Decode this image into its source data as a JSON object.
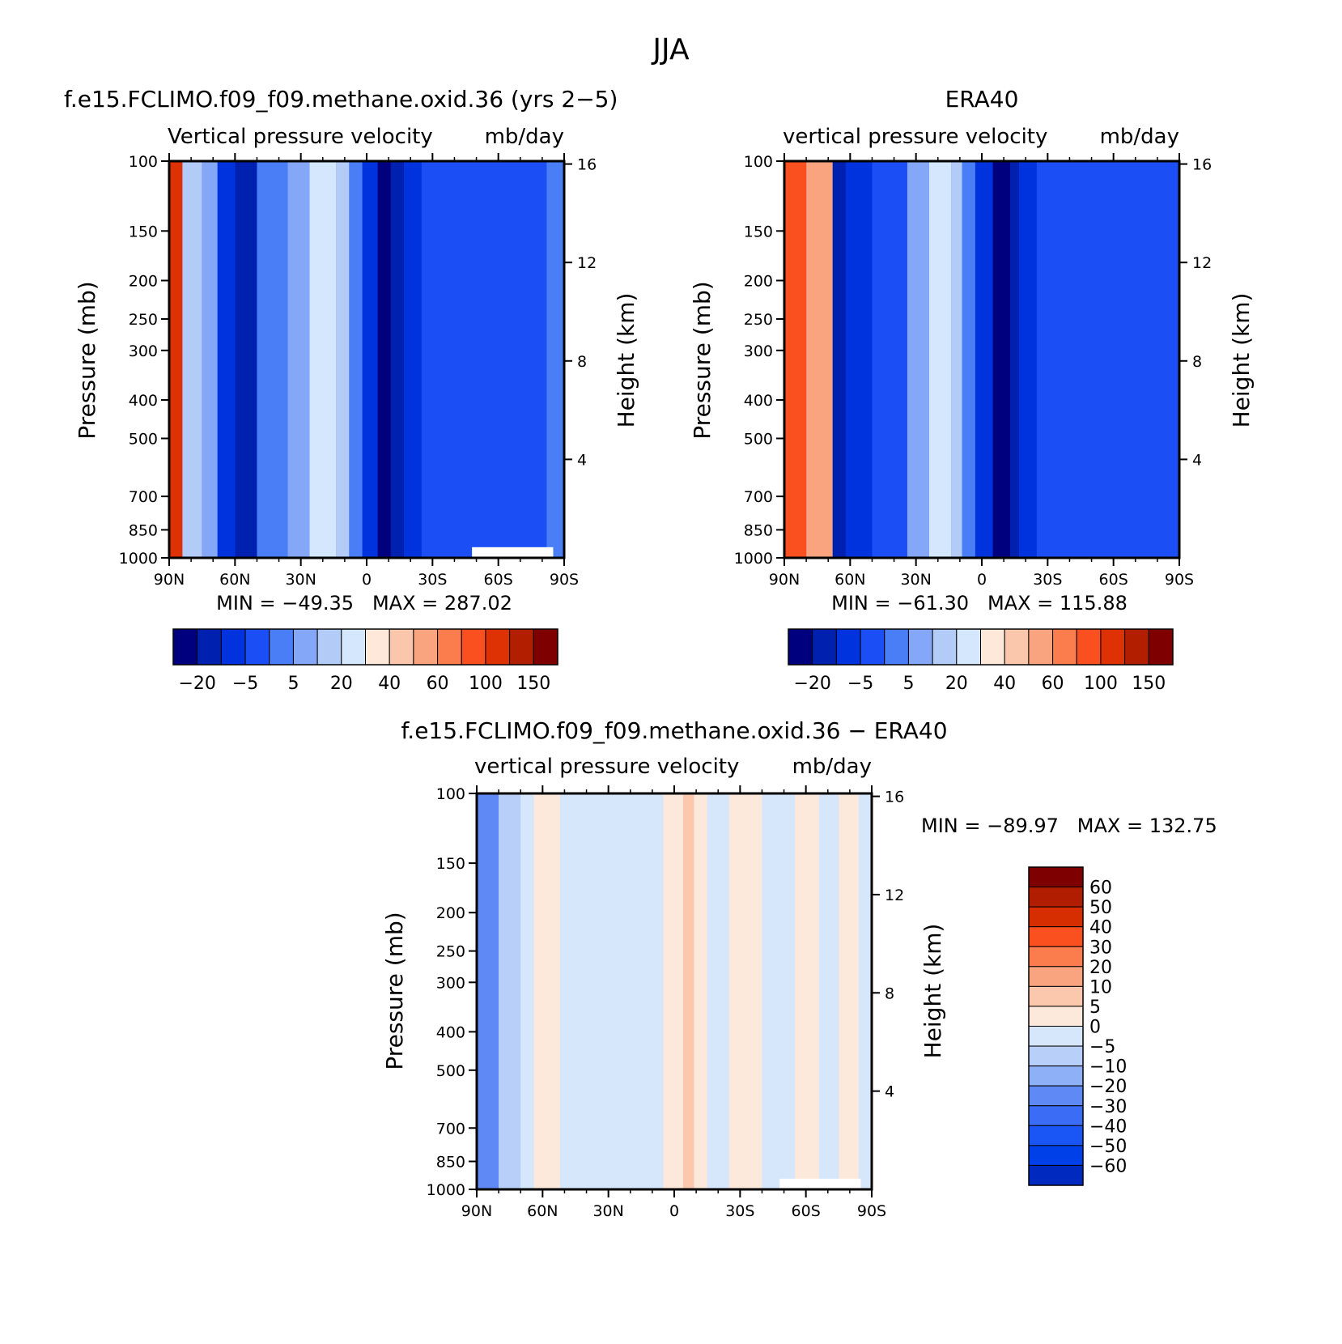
{
  "figure": {
    "title": "JJA"
  },
  "colors": {
    "abs_scale": [
      "#00007f",
      "#0020b0",
      "#0033dd",
      "#1c4ef5",
      "#4a7ef7",
      "#84a8f7",
      "#b2cbf7",
      "#d5e7fc",
      "#fde8da",
      "#fac7ad",
      "#f9a47f",
      "#fb7c4d",
      "#fa4f1f",
      "#de3204",
      "#b21e00",
      "#7f0000"
    ],
    "diff_scale": [
      "#00007f",
      "#00118c",
      "#0029bf",
      "#0040e8",
      "#1a55f5",
      "#3a6cf5",
      "#5f8af5",
      "#8eb0f7",
      "#b7cff9",
      "#d6e7fc",
      "#fde9db",
      "#fbc8ae",
      "#f9a47e",
      "#fb7c4d",
      "#fa4f1f",
      "#d62e00",
      "#b01d00",
      "#7f0000"
    ]
  },
  "chart_data": [
    {
      "type": "heatmap",
      "title": "f.e15.FCLIMO.f09_f09.methane.oxid.36 (yrs 2−5)",
      "subtitle_left": "Vertical pressure velocity",
      "subtitle_right": "mb/day",
      "xlabel": "",
      "ylabel": "Pressure (mb)",
      "y2label": "Height (km)",
      "x_ticks": [
        "90N",
        "60N",
        "30N",
        "0",
        "30S",
        "60S",
        "90S"
      ],
      "y_ticks": [
        "100",
        "150",
        "200",
        "250",
        "300",
        "400",
        "500",
        "700",
        "850",
        "1000"
      ],
      "y2_ticks": [
        "16",
        "12",
        "8",
        "4"
      ],
      "y_scale": "log",
      "ylim": [
        1000,
        100
      ],
      "stats": "MIN = −49.35   MAX = 287.02",
      "colorbar_labels": [
        "−20",
        "−5",
        "5",
        "20",
        "40",
        "60",
        "100",
        "150"
      ],
      "colorbar_orientation": "horizontal",
      "bands": [
        {
          "lat": [
            -90,
            -82
          ],
          "level": 4
        },
        {
          "lat": [
            -82,
            -70
          ],
          "level": 3
        },
        {
          "lat": [
            -70,
            -55
          ],
          "level": 3
        },
        {
          "lat": [
            -55,
            -45
          ],
          "level": 3
        },
        {
          "lat": [
            -45,
            -35
          ],
          "level": 3
        },
        {
          "lat": [
            -35,
            -25
          ],
          "level": 3
        },
        {
          "lat": [
            -25,
            -17
          ],
          "level": 2
        },
        {
          "lat": [
            -17,
            -11
          ],
          "level": 1
        },
        {
          "lat": [
            -11,
            -5
          ],
          "level": 0
        },
        {
          "lat": [
            -5,
            2
          ],
          "level": 2
        },
        {
          "lat": [
            2,
            8
          ],
          "level": 4
        },
        {
          "lat": [
            8,
            14
          ],
          "level": 6
        },
        {
          "lat": [
            14,
            26
          ],
          "level": 7
        },
        {
          "lat": [
            26,
            36
          ],
          "level": 5
        },
        {
          "lat": [
            36,
            50
          ],
          "level": 4
        },
        {
          "lat": [
            50,
            60
          ],
          "level": 1
        },
        {
          "lat": [
            60,
            68
          ],
          "level": 2
        },
        {
          "lat": [
            68,
            75
          ],
          "level": 5
        },
        {
          "lat": [
            75,
            84
          ],
          "level": 6
        },
        {
          "lat": [
            84,
            90
          ],
          "level": 13
        }
      ],
      "missing_note": "white block near surface 48S–85S"
    },
    {
      "type": "heatmap",
      "title": "ERA40",
      "subtitle_left": "vertical pressure velocity",
      "subtitle_right": "mb/day",
      "xlabel": "",
      "ylabel": "Pressure (mb)",
      "y2label": "Height (km)",
      "x_ticks": [
        "90N",
        "60N",
        "30N",
        "0",
        "30S",
        "60S",
        "90S"
      ],
      "y_ticks": [
        "100",
        "150",
        "200",
        "250",
        "300",
        "400",
        "500",
        "700",
        "850",
        "1000"
      ],
      "y2_ticks": [
        "16",
        "12",
        "8",
        "4"
      ],
      "y_scale": "log",
      "ylim": [
        1000,
        100
      ],
      "stats": "MIN = −61.30   MAX = 115.88",
      "colorbar_labels": [
        "−20",
        "−5",
        "5",
        "20",
        "40",
        "60",
        "100",
        "150"
      ],
      "colorbar_orientation": "horizontal",
      "bands": [
        {
          "lat": [
            -90,
            -80
          ],
          "level": 3
        },
        {
          "lat": [
            -80,
            -65
          ],
          "level": 3
        },
        {
          "lat": [
            -65,
            -55
          ],
          "level": 3
        },
        {
          "lat": [
            -55,
            -40
          ],
          "level": 3
        },
        {
          "lat": [
            -40,
            -25
          ],
          "level": 3
        },
        {
          "lat": [
            -25,
            -17
          ],
          "level": 2
        },
        {
          "lat": [
            -17,
            -13
          ],
          "level": 1
        },
        {
          "lat": [
            -13,
            -5
          ],
          "level": 0
        },
        {
          "lat": [
            -5,
            3
          ],
          "level": 2
        },
        {
          "lat": [
            3,
            9
          ],
          "level": 4
        },
        {
          "lat": [
            9,
            14
          ],
          "level": 6
        },
        {
          "lat": [
            14,
            24
          ],
          "level": 7
        },
        {
          "lat": [
            24,
            34
          ],
          "level": 5
        },
        {
          "lat": [
            34,
            50
          ],
          "level": 3
        },
        {
          "lat": [
            50,
            62
          ],
          "level": 2
        },
        {
          "lat": [
            62,
            68
          ],
          "level": 1
        },
        {
          "lat": [
            68,
            80
          ],
          "level": 10
        },
        {
          "lat": [
            80,
            90
          ],
          "level": 12
        }
      ]
    },
    {
      "type": "heatmap",
      "title": "f.e15.FCLIMO.f09_f09.methane.oxid.36 − ERA40",
      "subtitle_left": "vertical pressure velocity",
      "subtitle_right": "mb/day",
      "xlabel": "",
      "ylabel": "Pressure (mb)",
      "y2label": "Height (km)",
      "x_ticks": [
        "90N",
        "60N",
        "30N",
        "0",
        "30S",
        "60S",
        "90S"
      ],
      "y_ticks": [
        "100",
        "150",
        "200",
        "250",
        "300",
        "400",
        "500",
        "700",
        "850",
        "1000"
      ],
      "y2_ticks": [
        "16",
        "12",
        "8",
        "4"
      ],
      "y_scale": "log",
      "ylim": [
        1000,
        100
      ],
      "stats": "MIN = −89.97   MAX = 132.75",
      "colorbar_labels": [
        "60",
        "50",
        "40",
        "30",
        "20",
        "10",
        "5",
        "0",
        "−5",
        "−10",
        "−20",
        "−30",
        "−40",
        "−50",
        "−60"
      ],
      "colorbar_orientation": "vertical",
      "bands": [
        {
          "lat": [
            -90,
            -84
          ],
          "level": 9
        },
        {
          "lat": [
            -84,
            -75
          ],
          "level": 10
        },
        {
          "lat": [
            -75,
            -66
          ],
          "level": 9
        },
        {
          "lat": [
            -66,
            -55
          ],
          "level": 10
        },
        {
          "lat": [
            -55,
            -40
          ],
          "level": 9
        },
        {
          "lat": [
            -40,
            -25
          ],
          "level": 10
        },
        {
          "lat": [
            -25,
            -15
          ],
          "level": 9
        },
        {
          "lat": [
            -15,
            -9
          ],
          "level": 10
        },
        {
          "lat": [
            -9,
            -4
          ],
          "level": 11
        },
        {
          "lat": [
            -4,
            5
          ],
          "level": 10
        },
        {
          "lat": [
            5,
            12
          ],
          "level": 9
        },
        {
          "lat": [
            12,
            20
          ],
          "level": 9
        },
        {
          "lat": [
            20,
            36
          ],
          "level": 9
        },
        {
          "lat": [
            36,
            52
          ],
          "level": 9
        },
        {
          "lat": [
            52,
            64
          ],
          "level": 10
        },
        {
          "lat": [
            64,
            70
          ],
          "level": 9
        },
        {
          "lat": [
            70,
            80
          ],
          "level": 8
        },
        {
          "lat": [
            80,
            90
          ],
          "level": 6
        }
      ]
    }
  ]
}
